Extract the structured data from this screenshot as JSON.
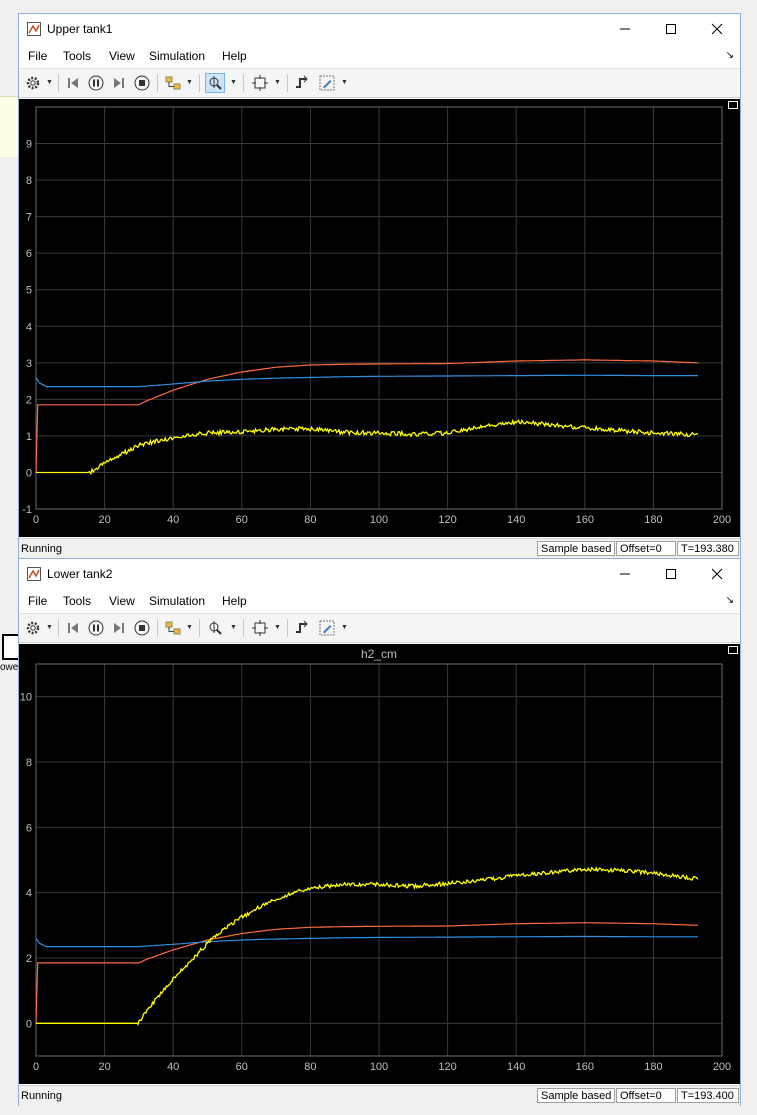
{
  "menu": [
    "File",
    "Tools",
    "View",
    "Simulation",
    "Help"
  ],
  "background": {
    "block_label": "owe"
  },
  "colors": {
    "yellow": "#ffff00",
    "orange": "#ff6b3a",
    "blue": "#2f8fe0",
    "grid": "#3a3a3a",
    "axis_text": "#bfbfbf"
  },
  "windows": [
    {
      "title": "Upper tank1",
      "status": "Running",
      "sample": "Sample based",
      "offset": "Offset=0",
      "time": "T=193.380"
    },
    {
      "title": "Lower tank2",
      "status": "Running",
      "sample": "Sample based",
      "offset": "Offset=0",
      "time": "T=193.400"
    }
  ],
  "chart_data": [
    {
      "type": "line",
      "title": "",
      "xlim": [
        0,
        200
      ],
      "ylim": [
        -1,
        10
      ],
      "xticks": [
        0,
        20,
        40,
        60,
        80,
        100,
        120,
        140,
        160,
        180,
        200
      ],
      "yticks": [
        -1,
        0,
        1,
        2,
        3,
        4,
        5,
        6,
        7,
        8,
        9
      ],
      "grid": true,
      "series": [
        {
          "color": "#ff6b3a",
          "x": [
            0,
            0.5,
            30,
            32,
            40,
            50,
            60,
            70,
            80,
            90,
            100,
            120,
            140,
            160,
            180,
            193
          ],
          "y": [
            0,
            1.85,
            1.85,
            1.95,
            2.25,
            2.55,
            2.75,
            2.88,
            2.94,
            2.96,
            2.97,
            2.98,
            3.05,
            3.08,
            3.05,
            3.0
          ]
        },
        {
          "color": "#2f8fe0",
          "x": [
            0,
            1,
            3,
            30,
            40,
            50,
            60,
            70,
            80,
            90,
            100,
            120,
            140,
            160,
            180,
            193
          ],
          "y": [
            2.6,
            2.45,
            2.35,
            2.35,
            2.42,
            2.5,
            2.55,
            2.58,
            2.6,
            2.62,
            2.63,
            2.64,
            2.65,
            2.66,
            2.65,
            2.65
          ]
        },
        {
          "color": "#ffff00",
          "x": [
            0,
            15,
            17,
            20,
            25,
            30,
            40,
            50,
            60,
            70,
            80,
            90,
            100,
            110,
            120,
            130,
            140,
            150,
            160,
            170,
            180,
            193
          ],
          "y": [
            0,
            0,
            0.05,
            0.25,
            0.5,
            0.75,
            0.95,
            1.08,
            1.12,
            1.18,
            1.2,
            1.1,
            1.08,
            1.05,
            1.08,
            1.25,
            1.38,
            1.3,
            1.22,
            1.15,
            1.08,
            1.03
          ]
        }
      ]
    },
    {
      "type": "line",
      "title": "h2_cm",
      "xlim": [
        0,
        200
      ],
      "ylim": [
        -1,
        11
      ],
      "xticks": [
        0,
        20,
        40,
        60,
        80,
        100,
        120,
        140,
        160,
        180,
        200
      ],
      "yticks": [
        0,
        2,
        4,
        6,
        8,
        10
      ],
      "grid": true,
      "series": [
        {
          "color": "#ff6b3a",
          "x": [
            0,
            0.5,
            30,
            32,
            40,
            50,
            60,
            70,
            80,
            90,
            100,
            120,
            140,
            160,
            180,
            193
          ],
          "y": [
            0,
            1.85,
            1.85,
            1.95,
            2.25,
            2.55,
            2.75,
            2.88,
            2.94,
            2.96,
            2.97,
            2.98,
            3.05,
            3.08,
            3.05,
            3.0
          ]
        },
        {
          "color": "#2f8fe0",
          "x": [
            0,
            1,
            3,
            30,
            40,
            50,
            60,
            70,
            80,
            90,
            100,
            120,
            140,
            160,
            180,
            193
          ],
          "y": [
            2.6,
            2.45,
            2.35,
            2.35,
            2.42,
            2.5,
            2.55,
            2.58,
            2.6,
            2.62,
            2.63,
            2.64,
            2.65,
            2.66,
            2.65,
            2.65
          ]
        },
        {
          "color": "#ffff00",
          "x": [
            0,
            29.5,
            30,
            35,
            40,
            45,
            50,
            55,
            60,
            65,
            70,
            75,
            80,
            90,
            100,
            110,
            120,
            130,
            140,
            150,
            160,
            170,
            180,
            193
          ],
          "y": [
            0,
            0,
            0.05,
            0.75,
            1.35,
            1.9,
            2.45,
            2.9,
            3.25,
            3.55,
            3.8,
            4.0,
            4.15,
            4.25,
            4.25,
            4.2,
            4.28,
            4.38,
            4.52,
            4.62,
            4.72,
            4.68,
            4.6,
            4.42
          ]
        }
      ]
    }
  ]
}
